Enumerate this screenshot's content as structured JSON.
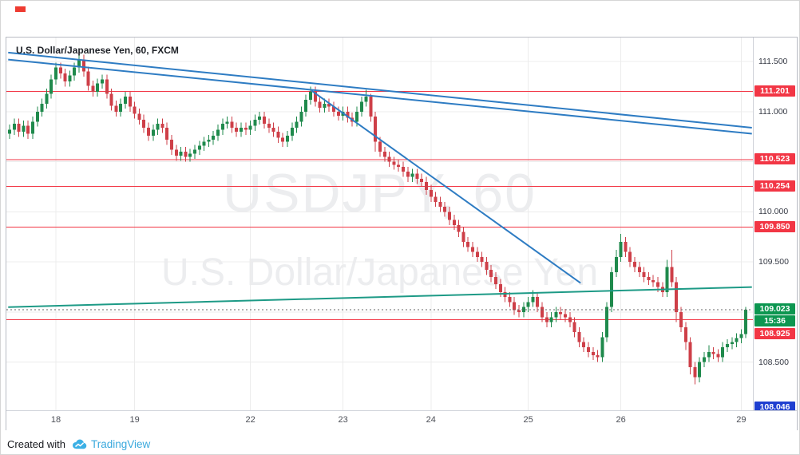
{
  "watermark": {
    "line1": "USDJPY, 60",
    "line2": "U.S. Dollar/Japanese Yen"
  },
  "attribution": {
    "prefix": "Created with",
    "brand": "TradingView"
  },
  "chart_data": {
    "type": "candlestick",
    "title": "U.S. Dollar/Japanese Yen, 60, FXCM",
    "symbol": "USDJPY",
    "timeframe_minutes": 60,
    "data_provider": "FXCM",
    "y_axis": {
      "min": 108.02,
      "max": 111.74,
      "ticks": [
        {
          "price": 111.5,
          "label": "111.500"
        },
        {
          "price": 111.0,
          "label": "111.000"
        },
        {
          "price": 110.0,
          "label": "110.000"
        },
        {
          "price": 109.5,
          "label": "109.500"
        },
        {
          "price": 108.5,
          "label": "108.500"
        }
      ],
      "grid": [
        111.5,
        111.0,
        110.5,
        110.0,
        109.5,
        109.0,
        108.5
      ]
    },
    "x_axis": {
      "days": [
        {
          "label": "18",
          "index": 10
        },
        {
          "label": "19",
          "index": 27
        },
        {
          "label": "22",
          "index": 52
        },
        {
          "label": "23",
          "index": 72
        },
        {
          "label": "24",
          "index": 91
        },
        {
          "label": "25",
          "index": 112
        },
        {
          "label": "26",
          "index": 132
        },
        {
          "label": "29",
          "index": 158
        }
      ]
    },
    "levels": [
      {
        "price": 111.201,
        "label": "111.201"
      },
      {
        "price": 110.523,
        "label": "110.523"
      },
      {
        "price": 110.254,
        "label": "110.254"
      },
      {
        "price": 109.85,
        "label": "109.850"
      },
      {
        "price": 108.925,
        "label": "108.925"
      }
    ],
    "current": {
      "price": 109.023,
      "label": "109.023",
      "countdown": "15:36"
    },
    "low_marker": {
      "price": 108.046,
      "label": "108.046"
    },
    "trendlines": [
      {
        "name": "descending-trendline-1",
        "color": "#2e7cc3",
        "width": 2,
        "from": {
          "i": -0.3,
          "p": 111.59
        },
        "to": {
          "i": 160.3,
          "p": 110.84
        }
      },
      {
        "name": "descending-trendline-2",
        "color": "#2e7cc3",
        "width": 2,
        "from": {
          "i": -0.3,
          "p": 111.52
        },
        "to": {
          "i": 160.3,
          "p": 110.78
        }
      },
      {
        "name": "steep-descending-trendline",
        "color": "#2e7cc3",
        "width": 2,
        "from": {
          "i": 65.2,
          "p": 111.21
        },
        "to": {
          "i": 123.3,
          "p": 109.29
        }
      },
      {
        "name": "ascending-support-line",
        "color": "#1d9a86",
        "width": 2,
        "from": {
          "i": -0.3,
          "p": 109.05
        },
        "to": {
          "i": 160.3,
          "p": 109.25
        }
      }
    ],
    "colors": {
      "up": "#1f8a4c",
      "down": "#ce3f48",
      "level": "#f23645",
      "current_badge": "#0c9650",
      "low_badge": "#1f3fd0",
      "grid": "#ececec",
      "current_line": "#666666"
    },
    "candles": [
      [
        110.78,
        110.87,
        110.73,
        110.82
      ],
      [
        110.82,
        110.93,
        110.77,
        110.88
      ],
      [
        110.88,
        110.93,
        110.75,
        110.8
      ],
      [
        110.8,
        110.91,
        110.75,
        110.86
      ],
      [
        110.86,
        110.91,
        110.73,
        110.78
      ],
      [
        110.78,
        110.95,
        110.73,
        110.9
      ],
      [
        110.9,
        111.05,
        110.85,
        111.0
      ],
      [
        111.0,
        111.13,
        110.95,
        111.08
      ],
      [
        111.08,
        111.23,
        111.03,
        111.18
      ],
      [
        111.18,
        111.37,
        111.13,
        111.32
      ],
      [
        111.32,
        111.49,
        111.27,
        111.44
      ],
      [
        111.44,
        111.49,
        111.33,
        111.38
      ],
      [
        111.38,
        111.43,
        111.25,
        111.3
      ],
      [
        111.3,
        111.41,
        111.25,
        111.36
      ],
      [
        111.36,
        111.49,
        111.31,
        111.44
      ],
      [
        111.44,
        111.6,
        111.39,
        111.52
      ],
      [
        111.52,
        111.57,
        111.35,
        111.4
      ],
      [
        111.4,
        111.45,
        111.21,
        111.26
      ],
      [
        111.26,
        111.31,
        111.15,
        111.2
      ],
      [
        111.2,
        111.33,
        111.15,
        111.28
      ],
      [
        111.28,
        111.37,
        111.23,
        111.32
      ],
      [
        111.32,
        111.37,
        111.13,
        111.18
      ],
      [
        111.18,
        111.23,
        111.01,
        111.06
      ],
      [
        111.06,
        111.11,
        110.95,
        111.0
      ],
      [
        111.0,
        111.13,
        110.95,
        111.08
      ],
      [
        111.08,
        111.2,
        111.03,
        111.15
      ],
      [
        111.15,
        111.2,
        111.0,
        111.05
      ],
      [
        111.05,
        111.1,
        110.93,
        110.98
      ],
      [
        110.98,
        111.03,
        110.87,
        110.92
      ],
      [
        110.92,
        110.97,
        110.79,
        110.84
      ],
      [
        110.84,
        110.89,
        110.71,
        110.76
      ],
      [
        110.76,
        110.87,
        110.71,
        110.82
      ],
      [
        110.82,
        110.93,
        110.77,
        110.88
      ],
      [
        110.88,
        110.93,
        110.79,
        110.84
      ],
      [
        110.84,
        110.89,
        110.67,
        110.72
      ],
      [
        110.72,
        110.77,
        110.57,
        110.62
      ],
      [
        110.62,
        110.67,
        110.51,
        110.56
      ],
      [
        110.56,
        110.65,
        110.51,
        110.6
      ],
      [
        110.6,
        110.65,
        110.5,
        110.55
      ],
      [
        110.55,
        110.63,
        110.5,
        110.58
      ],
      [
        110.58,
        110.67,
        110.53,
        110.62
      ],
      [
        110.62,
        110.71,
        110.57,
        110.66
      ],
      [
        110.66,
        110.75,
        110.61,
        110.7
      ],
      [
        110.7,
        110.77,
        110.65,
        110.72
      ],
      [
        110.72,
        110.81,
        110.67,
        110.76
      ],
      [
        110.76,
        110.87,
        110.71,
        110.82
      ],
      [
        110.82,
        110.93,
        110.77,
        110.88
      ],
      [
        110.88,
        110.95,
        110.83,
        110.9
      ],
      [
        110.9,
        110.95,
        110.79,
        110.84
      ],
      [
        110.84,
        110.89,
        110.75,
        110.8
      ],
      [
        110.8,
        110.89,
        110.75,
        110.84
      ],
      [
        110.84,
        110.89,
        110.77,
        110.82
      ],
      [
        110.82,
        110.91,
        110.77,
        110.86
      ],
      [
        110.86,
        110.97,
        110.81,
        110.92
      ],
      [
        110.92,
        111.0,
        110.87,
        110.95
      ],
      [
        110.95,
        111.0,
        110.83,
        110.88
      ],
      [
        110.88,
        110.93,
        110.79,
        110.84
      ],
      [
        110.84,
        110.89,
        110.75,
        110.8
      ],
      [
        110.8,
        110.85,
        110.69,
        110.74
      ],
      [
        110.74,
        110.79,
        110.65,
        110.7
      ],
      [
        110.7,
        110.81,
        110.65,
        110.76
      ],
      [
        110.76,
        110.89,
        110.71,
        110.84
      ],
      [
        110.84,
        110.95,
        110.79,
        110.9
      ],
      [
        110.9,
        111.05,
        110.85,
        111.0
      ],
      [
        111.0,
        111.17,
        110.95,
        111.12
      ],
      [
        111.12,
        111.25,
        111.07,
        111.2
      ],
      [
        111.2,
        111.25,
        111.05,
        111.1
      ],
      [
        111.1,
        111.15,
        110.99,
        111.04
      ],
      [
        111.04,
        111.13,
        110.99,
        111.08
      ],
      [
        111.08,
        111.13,
        111.0,
        111.05
      ],
      [
        111.05,
        111.1,
        110.95,
        111.0
      ],
      [
        111.0,
        111.05,
        110.91,
        110.96
      ],
      [
        110.96,
        111.05,
        110.91,
        111.0
      ],
      [
        111.0,
        111.05,
        110.89,
        110.94
      ],
      [
        110.94,
        110.99,
        110.85,
        110.9
      ],
      [
        110.9,
        111.05,
        110.85,
        111.0
      ],
      [
        111.0,
        111.15,
        110.95,
        111.1
      ],
      [
        111.1,
        111.22,
        111.05,
        111.15
      ],
      [
        111.15,
        111.18,
        110.9,
        110.95
      ],
      [
        110.95,
        111.0,
        110.6,
        110.7
      ],
      [
        110.7,
        110.75,
        110.55,
        110.6
      ],
      [
        110.6,
        110.65,
        110.5,
        110.55
      ],
      [
        110.55,
        110.6,
        110.45,
        110.5
      ],
      [
        110.5,
        110.55,
        110.42,
        110.47
      ],
      [
        110.47,
        110.52,
        110.4,
        110.45
      ],
      [
        110.45,
        110.5,
        110.35,
        110.4
      ],
      [
        110.4,
        110.45,
        110.3,
        110.35
      ],
      [
        110.35,
        110.43,
        110.3,
        110.38
      ],
      [
        110.38,
        110.43,
        110.28,
        110.33
      ],
      [
        110.33,
        110.38,
        110.25,
        110.3
      ],
      [
        110.3,
        110.35,
        110.17,
        110.22
      ],
      [
        110.22,
        110.27,
        110.1,
        110.15
      ],
      [
        110.15,
        110.2,
        110.05,
        110.1
      ],
      [
        110.1,
        110.15,
        110.0,
        110.05
      ],
      [
        110.05,
        110.1,
        109.95,
        110.0
      ],
      [
        110.0,
        110.05,
        109.87,
        109.92
      ],
      [
        109.92,
        109.97,
        109.82,
        109.87
      ],
      [
        109.87,
        109.92,
        109.75,
        109.8
      ],
      [
        109.8,
        109.85,
        109.65,
        109.7
      ],
      [
        109.7,
        109.75,
        109.6,
        109.65
      ],
      [
        109.65,
        109.7,
        109.55,
        109.6
      ],
      [
        109.6,
        109.65,
        109.5,
        109.55
      ],
      [
        109.55,
        109.6,
        109.45,
        109.5
      ],
      [
        109.5,
        109.55,
        109.37,
        109.42
      ],
      [
        109.42,
        109.47,
        109.3,
        109.35
      ],
      [
        109.35,
        109.4,
        109.23,
        109.28
      ],
      [
        109.28,
        109.33,
        109.15,
        109.2
      ],
      [
        109.2,
        109.25,
        109.1,
        109.15
      ],
      [
        109.15,
        109.2,
        109.05,
        109.1
      ],
      [
        109.1,
        109.15,
        108.97,
        109.02
      ],
      [
        109.02,
        109.07,
        108.95,
        109.0
      ],
      [
        109.0,
        109.1,
        108.95,
        109.05
      ],
      [
        109.05,
        109.15,
        109.0,
        109.1
      ],
      [
        109.1,
        109.22,
        109.05,
        109.15
      ],
      [
        109.15,
        109.2,
        109.0,
        109.05
      ],
      [
        109.05,
        109.1,
        108.9,
        108.95
      ],
      [
        108.95,
        109.0,
        108.85,
        108.9
      ],
      [
        108.9,
        109.0,
        108.85,
        108.95
      ],
      [
        108.95,
        109.05,
        108.9,
        109.0
      ],
      [
        109.0,
        109.05,
        108.93,
        108.98
      ],
      [
        108.98,
        109.03,
        108.9,
        108.95
      ],
      [
        108.95,
        109.0,
        108.85,
        108.9
      ],
      [
        108.9,
        108.95,
        108.75,
        108.8
      ],
      [
        108.8,
        108.85,
        108.65,
        108.7
      ],
      [
        108.7,
        108.75,
        108.6,
        108.65
      ],
      [
        108.65,
        108.7,
        108.55,
        108.6
      ],
      [
        108.6,
        108.65,
        108.52,
        108.57
      ],
      [
        108.57,
        108.62,
        108.5,
        108.55
      ],
      [
        108.55,
        108.8,
        108.5,
        108.75
      ],
      [
        108.75,
        109.1,
        108.7,
        109.05
      ],
      [
        109.05,
        109.45,
        109.0,
        109.4
      ],
      [
        109.4,
        109.62,
        109.35,
        109.55
      ],
      [
        109.55,
        109.78,
        109.5,
        109.7
      ],
      [
        109.7,
        109.75,
        109.55,
        109.6
      ],
      [
        109.6,
        109.65,
        109.45,
        109.5
      ],
      [
        109.5,
        109.55,
        109.4,
        109.45
      ],
      [
        109.45,
        109.5,
        109.35,
        109.4
      ],
      [
        109.4,
        109.45,
        109.3,
        109.35
      ],
      [
        109.35,
        109.4,
        109.27,
        109.32
      ],
      [
        109.32,
        109.37,
        109.25,
        109.3
      ],
      [
        109.3,
        109.35,
        109.2,
        109.25
      ],
      [
        109.25,
        109.3,
        109.15,
        109.2
      ],
      [
        109.2,
        109.52,
        109.15,
        109.45
      ],
      [
        109.45,
        109.62,
        109.25,
        109.3
      ],
      [
        109.3,
        109.35,
        108.9,
        109.0
      ],
      [
        109.0,
        109.05,
        108.8,
        108.85
      ],
      [
        108.85,
        108.9,
        108.62,
        108.7
      ],
      [
        108.7,
        108.75,
        108.38,
        108.45
      ],
      [
        108.45,
        108.5,
        108.28,
        108.35
      ],
      [
        108.35,
        108.55,
        108.3,
        108.5
      ],
      [
        108.5,
        108.6,
        108.45,
        108.55
      ],
      [
        108.55,
        108.67,
        108.5,
        108.6
      ],
      [
        108.6,
        108.65,
        108.53,
        108.58
      ],
      [
        108.58,
        108.63,
        108.5,
        108.55
      ],
      [
        108.55,
        108.7,
        108.5,
        108.65
      ],
      [
        108.65,
        108.73,
        108.6,
        108.68
      ],
      [
        108.68,
        108.75,
        108.63,
        108.7
      ],
      [
        108.7,
        108.79,
        108.65,
        108.74
      ],
      [
        108.74,
        108.83,
        108.69,
        108.78
      ],
      [
        108.78,
        109.05,
        108.74,
        109.023
      ]
    ]
  }
}
